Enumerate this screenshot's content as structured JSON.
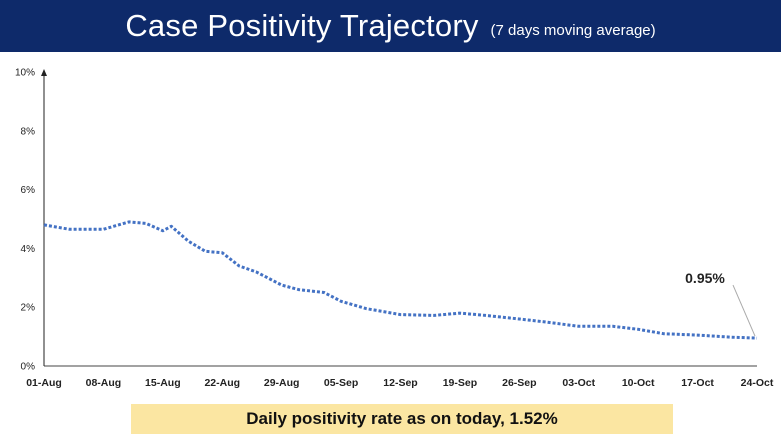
{
  "header": {
    "title": "Case Positivity Trajectory",
    "subtitle": "(7 days moving average)"
  },
  "banner": {
    "text": "Daily positivity rate as on today, 1.52%"
  },
  "colors": {
    "header_bg": "#0e2a6a",
    "line": "#4472c4",
    "banner_bg": "#fbe6a2"
  },
  "chart_data": {
    "type": "line",
    "title": "Case Positivity Trajectory",
    "subtitle": "(7 days moving average)",
    "xlabel": "",
    "ylabel": "",
    "ylim": [
      0,
      10
    ],
    "yticks": [
      0,
      2,
      4,
      6,
      8,
      10
    ],
    "ytick_labels": [
      "0%",
      "2%",
      "4%",
      "6%",
      "8%",
      "10%"
    ],
    "xtick_labels": [
      "01-Aug",
      "08-Aug",
      "15-Aug",
      "22-Aug",
      "29-Aug",
      "05-Sep",
      "12-Sep",
      "19-Sep",
      "26-Sep",
      "03-Oct",
      "10-Oct",
      "17-Oct",
      "24-Oct"
    ],
    "grid": false,
    "line_style": "dotted",
    "x": [
      "01-Aug",
      "04-Aug",
      "08-Aug",
      "11-Aug",
      "13-Aug",
      "15-Aug",
      "16-Aug",
      "18-Aug",
      "20-Aug",
      "22-Aug",
      "24-Aug",
      "26-Aug",
      "29-Aug",
      "31-Aug",
      "03-Sep",
      "05-Sep",
      "08-Sep",
      "10-Sep",
      "12-Sep",
      "16-Sep",
      "19-Sep",
      "22-Sep",
      "26-Sep",
      "29-Sep",
      "03-Oct",
      "07-Oct",
      "10-Oct",
      "13-Oct",
      "17-Oct",
      "21-Oct",
      "24-Oct"
    ],
    "series": [
      {
        "values": [
          4.8,
          4.65,
          4.65,
          4.9,
          4.85,
          4.6,
          4.75,
          4.25,
          3.9,
          3.85,
          3.4,
          3.2,
          2.75,
          2.6,
          2.5,
          2.2,
          1.95,
          1.85,
          1.75,
          1.72,
          1.8,
          1.72,
          1.6,
          1.5,
          1.35,
          1.35,
          1.25,
          1.1,
          1.05,
          0.98,
          0.95
        ]
      }
    ],
    "annotations": [
      {
        "label": "0.95%",
        "x": "24-Oct",
        "y": 0.95
      }
    ]
  }
}
